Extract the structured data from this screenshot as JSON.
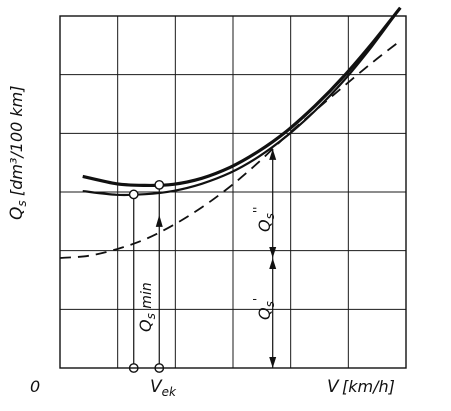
{
  "chart_data": {
    "type": "line",
    "title": "",
    "xlabel": "V",
    "xunit": "[km/h]",
    "ylabel": "Q_s",
    "yunit": "[dm³/100 km]",
    "origin_label": "0",
    "x_tick_labels": [
      "V_ek"
    ],
    "grid": true,
    "x_grid_divisions": 6,
    "y_grid_divisions": 6,
    "x": [
      0,
      0.5,
      1,
      1.5,
      2,
      2.5,
      3,
      3.5,
      4,
      4.5,
      5,
      5.5,
      6
    ],
    "series": [
      {
        "role": "upper-bold",
        "values": [
          3.62,
          3.45,
          3.35,
          3.32,
          3.34,
          3.45,
          3.65,
          3.94,
          4.31,
          4.77,
          5.3,
          5.9,
          6.55
        ]
      },
      {
        "role": "middle",
        "values": [
          3.28,
          3.2,
          3.15,
          3.16,
          3.22,
          3.35,
          3.55,
          3.84,
          4.22,
          4.68,
          5.22,
          5.85,
          6.55
        ]
      },
      {
        "role": "dashed",
        "values": [
          2.0,
          2.04,
          2.16,
          2.34,
          2.6,
          2.92,
          3.3,
          3.74,
          4.23,
          4.68,
          5.12,
          5.55,
          5.95
        ]
      }
    ],
    "annotations": {
      "qs_min_label": "Q_s min",
      "qs_double_prime_label": "Q''_s",
      "qs_prime_label": "Q'_s",
      "qs_min_x": 1.3,
      "vek_x": 1.75,
      "split_x": 3.75
    },
    "xlim": [
      0,
      6.1
    ],
    "ylim": [
      0,
      6.4
    ]
  }
}
